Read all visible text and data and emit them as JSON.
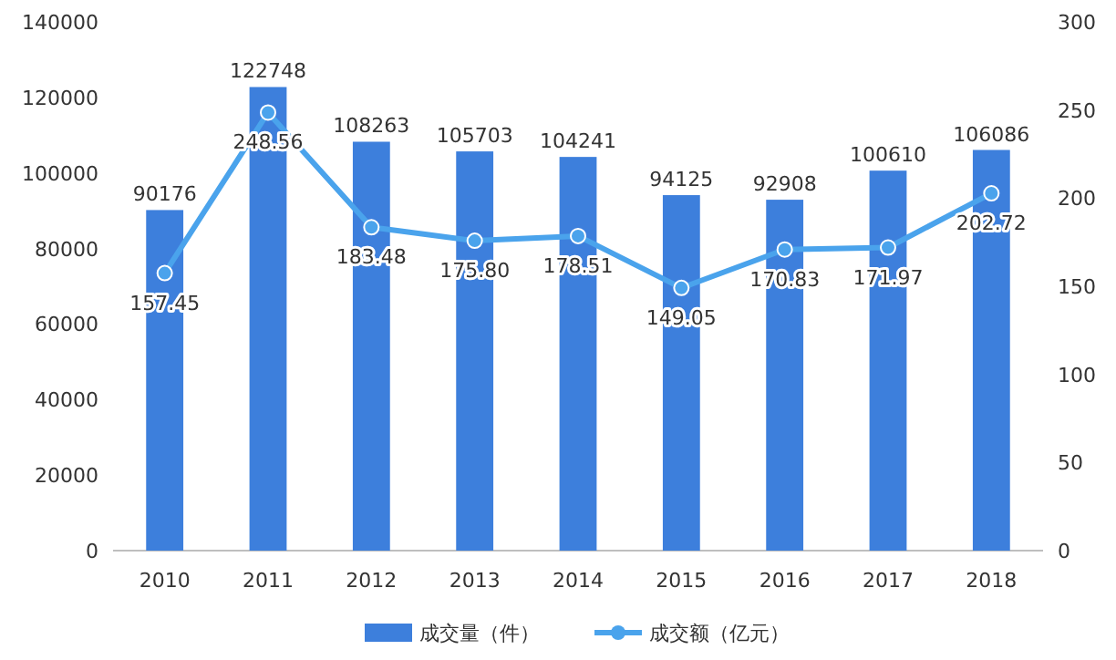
{
  "chart_data": {
    "type": "bar",
    "categories": [
      "2010",
      "2011",
      "2012",
      "2013",
      "2014",
      "2015",
      "2016",
      "2017",
      "2018"
    ],
    "series": [
      {
        "name": "成交量（件）",
        "color": "#3d7fdc",
        "values": [
          90176,
          122748,
          108263,
          105703,
          104241,
          94125,
          92908,
          100610,
          106086
        ]
      },
      {
        "name": "成交额（亿元）",
        "type": "line",
        "axis": "y2",
        "color": "#4aa3ec",
        "marker": "circle",
        "values": [
          157.45,
          248.56,
          183.48,
          175.8,
          178.51,
          149.05,
          170.83,
          171.97,
          202.72
        ],
        "value_labels": [
          "157.45",
          "248.56",
          "183.48",
          "175.80",
          "178.51",
          "149.05",
          "170.83",
          "171.97",
          "202.72"
        ]
      }
    ],
    "data_labels": true,
    "ylim": [
      0,
      140000
    ],
    "yticks": [
      0,
      20000,
      40000,
      60000,
      80000,
      100000,
      120000,
      140000
    ],
    "y2lim": [
      0,
      300
    ],
    "y2ticks": [
      0,
      50,
      100,
      150,
      200,
      250,
      300
    ],
    "legend": "bottom"
  }
}
